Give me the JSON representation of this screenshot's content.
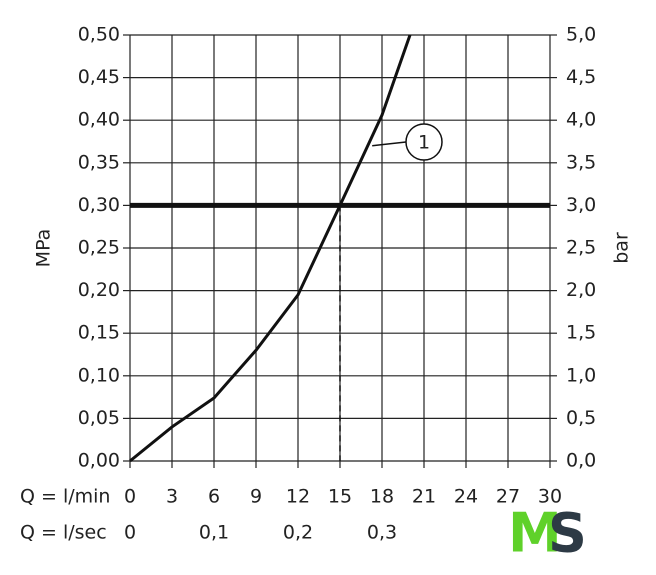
{
  "chart_data": {
    "type": "line",
    "y_label": "MPa",
    "y2_label": "bar",
    "x_label": "Q = l/min",
    "x2_label": "Q = l/sec",
    "x": [
      0,
      3,
      6,
      9,
      12,
      15,
      18,
      20
    ],
    "series": [
      {
        "name": "1",
        "color": "#111111",
        "values": [
          0,
          0.04,
          0.074,
          0.13,
          0.195,
          0.3,
          0.406,
          0.5
        ]
      }
    ],
    "xlim": [
      0,
      30
    ],
    "xticks": [
      0,
      3,
      6,
      9,
      12,
      15,
      18,
      21,
      24,
      27,
      30
    ],
    "x2lim": [
      0,
      0.5
    ],
    "x2ticks": [
      0,
      {
        "value": 0.1,
        "label": "0,1"
      },
      {
        "value": 0.2,
        "label": "0,2"
      },
      {
        "value": 0.3,
        "label": "0,3"
      }
    ],
    "ylim": [
      0,
      0.5
    ],
    "yticks": [
      {
        "value": 0,
        "label": "0,00"
      },
      {
        "value": 0.05,
        "label": "0,05"
      },
      {
        "value": 0.1,
        "label": "0,10"
      },
      {
        "value": 0.15,
        "label": "0,15"
      },
      {
        "value": 0.2,
        "label": "0,20"
      },
      {
        "value": 0.25,
        "label": "0,25"
      },
      {
        "value": 0.3,
        "label": "0,30"
      },
      {
        "value": 0.35,
        "label": "0,35"
      },
      {
        "value": 0.4,
        "label": "0,40"
      },
      {
        "value": 0.45,
        "label": "0,45"
      },
      {
        "value": 0.5,
        "label": "0,50"
      }
    ],
    "y2lim": [
      0,
      5
    ],
    "y2ticks": [
      {
        "value": 0,
        "label": "0,0"
      },
      {
        "value": 0.5,
        "label": "0,5"
      },
      {
        "value": 1,
        "label": "1,0"
      },
      {
        "value": 1.5,
        "label": "1,5"
      },
      {
        "value": 2,
        "label": "2,0"
      },
      {
        "value": 2.5,
        "label": "2,5"
      },
      {
        "value": 3,
        "label": "3,0"
      },
      {
        "value": 3.5,
        "label": "3,5"
      },
      {
        "value": 4,
        "label": "4,0"
      },
      {
        "value": 4.5,
        "label": "4,5"
      },
      {
        "value": 5,
        "label": "5,0"
      }
    ],
    "reference_y": 0.3,
    "reference_x": 15,
    "grid": true,
    "watermark": {
      "m": "M",
      "s": "S"
    }
  }
}
